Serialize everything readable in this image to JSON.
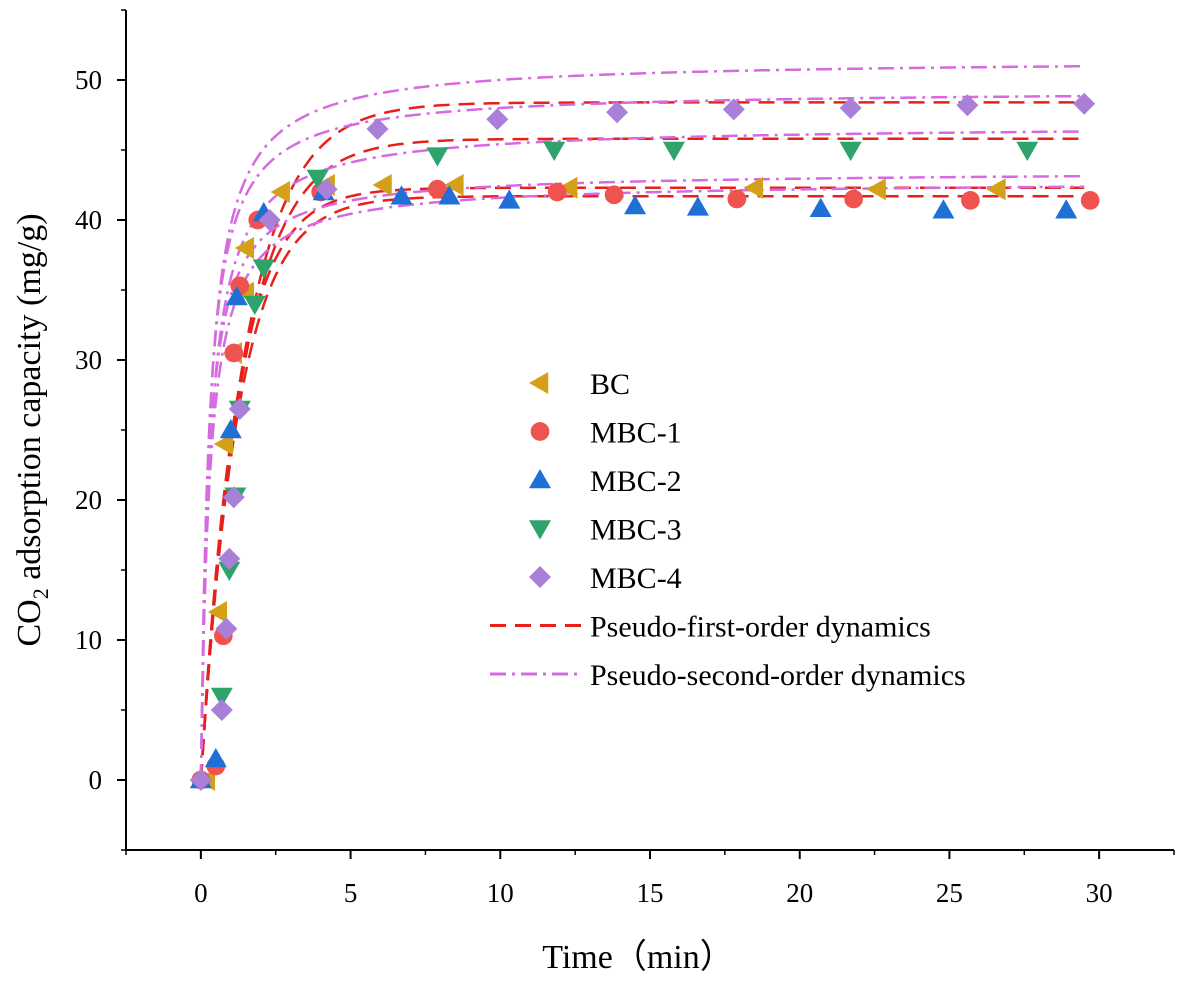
{
  "chart_data": {
    "type": "scatter",
    "title": "",
    "xlabel": "Time（min）",
    "ylabel": "CO2 adsorption capacity (mg/g)",
    "ylabel_parts": {
      "main": "CO",
      "sub": "2",
      "rest": " adsorption capacity (mg/g)"
    },
    "xlim": [
      -2.5,
      32.5
    ],
    "ylim": [
      -5,
      55
    ],
    "xticks": [
      0,
      5,
      10,
      15,
      20,
      25,
      30
    ],
    "yticks": [
      0,
      10,
      20,
      30,
      40,
      50
    ],
    "xtick_labels": [
      "0",
      "5",
      "10",
      "15",
      "20",
      "25",
      "30"
    ],
    "ytick_labels": [
      "0",
      "10",
      "20",
      "30",
      "40",
      "50"
    ],
    "grid": false,
    "legend_position": "center-right",
    "series": [
      {
        "name": "BC",
        "marker": "triangle-left",
        "color": "#d4a017",
        "x": [
          0.2,
          0.6,
          0.8,
          1.1,
          1.5,
          1.5,
          2.7,
          4.2,
          6.1,
          8.5,
          12.3,
          18.5,
          22.6,
          26.6
        ],
        "y": [
          0,
          12,
          24,
          30.5,
          34.8,
          38,
          42,
          42.5,
          42.5,
          42.5,
          42.3,
          42.3,
          42.2,
          42.2
        ]
      },
      {
        "name": "MBC-1",
        "marker": "circle",
        "color": "#ef5350",
        "x": [
          0,
          0.5,
          0.75,
          1.1,
          1.3,
          1.9,
          4.0,
          7.9,
          11.9,
          13.8,
          17.9,
          21.8,
          25.7,
          29.7
        ],
        "y": [
          0,
          1,
          10.3,
          30.5,
          35.3,
          40,
          42,
          42.2,
          42,
          41.8,
          41.5,
          41.5,
          41.4,
          41.4
        ]
      },
      {
        "name": "MBC-2",
        "marker": "triangle-up",
        "color": "#1f6fd6",
        "x": [
          0,
          0.5,
          1.0,
          1.2,
          2.1,
          4.1,
          6.7,
          8.3,
          10.3,
          14.5,
          16.6,
          20.7,
          24.8,
          28.9
        ],
        "y": [
          0,
          1.5,
          25,
          34.5,
          40.5,
          42,
          41.7,
          41.7,
          41.4,
          41,
          40.9,
          40.8,
          40.7,
          40.7
        ]
      },
      {
        "name": "MBC-3",
        "marker": "triangle-down",
        "color": "#2ea36b",
        "x": [
          0.7,
          0.95,
          1.15,
          1.3,
          1.8,
          2.1,
          3.9,
          7.9,
          11.8,
          15.8,
          21.7,
          27.6
        ],
        "y": [
          6,
          15,
          20.3,
          26.5,
          34,
          36.6,
          43,
          44.6,
          45,
          45,
          45,
          45
        ]
      },
      {
        "name": "MBC-4",
        "marker": "diamond",
        "color": "#a97fd8",
        "x": [
          0,
          0.7,
          0.85,
          0.95,
          1.1,
          1.3,
          2.3,
          4.2,
          5.9,
          9.9,
          13.9,
          17.8,
          21.7,
          25.6,
          29.5
        ],
        "y": [
          0,
          5,
          10.8,
          15.8,
          20.2,
          26.5,
          40,
          42.2,
          46.5,
          47.2,
          47.7,
          47.9,
          48,
          48.2,
          48.3
        ]
      }
    ],
    "fits": [
      {
        "name": "Pseudo-first-order dynamics",
        "style": "dashed",
        "color": "#e8201a",
        "curves": [
          {
            "qe": 42.3,
            "k": 0.85
          },
          {
            "qe": 41.7,
            "k": 0.8
          },
          {
            "qe": 45.8,
            "k": 0.72
          },
          {
            "qe": 48.4,
            "k": 0.68
          }
        ]
      },
      {
        "name": "Pseudo-second-order dynamics",
        "style": "dash-dot",
        "color": "#d66be0",
        "curves": [
          {
            "qe": 43.5,
            "k": 0.09
          },
          {
            "qe": 42.8,
            "k": 0.08
          },
          {
            "qe": 46.8,
            "k": 0.07
          },
          {
            "qe": 49.3,
            "k": 0.075
          },
          {
            "qe": 51.5,
            "k": 0.065
          }
        ]
      }
    ]
  }
}
